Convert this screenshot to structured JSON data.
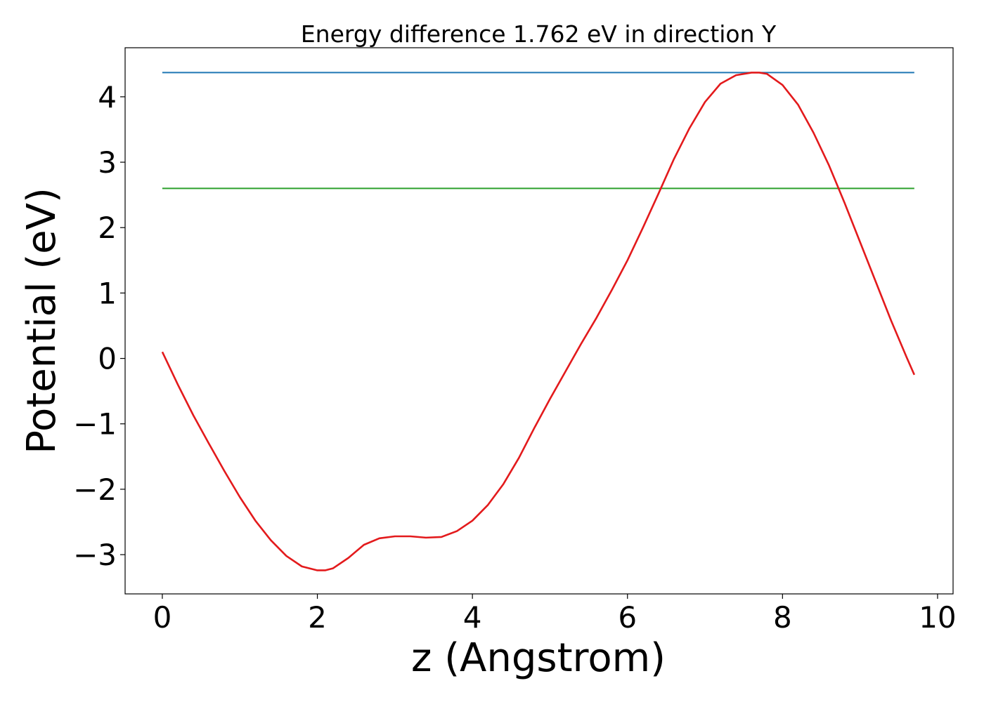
{
  "chart_data": {
    "type": "line",
    "title": "Energy difference 1.762 eV in direction Y",
    "xlabel": "z (Angstrom)",
    "ylabel": "Potential (eV)",
    "xlim": [
      -0.48,
      10.2
    ],
    "ylim": [
      -3.6,
      4.75
    ],
    "xticks": [
      0,
      2,
      4,
      6,
      8,
      10
    ],
    "xtick_labels": [
      "0",
      "2",
      "4",
      "6",
      "8",
      "10"
    ],
    "yticks": [
      -3,
      -2,
      -1,
      0,
      1,
      2,
      3,
      4
    ],
    "ytick_labels": [
      "−3",
      "−2",
      "−1",
      "0",
      "1",
      "2",
      "3",
      "4"
    ],
    "grid": false,
    "series": [
      {
        "color": "#1f77b4",
        "x": [
          0,
          9.7
        ],
        "y": [
          4.37,
          4.37
        ]
      },
      {
        "color": "#2ca02c",
        "x": [
          0,
          9.7
        ],
        "y": [
          2.6,
          2.6
        ]
      },
      {
        "color": "#e31a1c",
        "x": [
          0,
          0.2,
          0.4,
          0.6,
          0.8,
          1.0,
          1.2,
          1.4,
          1.6,
          1.8,
          2.0,
          2.1,
          2.2,
          2.4,
          2.6,
          2.8,
          3.0,
          3.2,
          3.4,
          3.6,
          3.8,
          4.0,
          4.2,
          4.4,
          4.6,
          4.8,
          5.0,
          5.2,
          5.4,
          5.6,
          5.8,
          6.0,
          6.2,
          6.4,
          6.6,
          6.8,
          7.0,
          7.2,
          7.4,
          7.6,
          7.7,
          7.8,
          8.0,
          8.2,
          8.4,
          8.6,
          8.8,
          9.0,
          9.2,
          9.4,
          9.6,
          9.7
        ],
        "y": [
          0.1,
          -0.4,
          -0.87,
          -1.3,
          -1.72,
          -2.12,
          -2.48,
          -2.78,
          -3.02,
          -3.18,
          -3.24,
          -3.24,
          -3.21,
          -3.05,
          -2.85,
          -2.75,
          -2.72,
          -2.72,
          -2.74,
          -2.73,
          -2.64,
          -2.48,
          -2.24,
          -1.92,
          -1.52,
          -1.06,
          -0.62,
          -0.2,
          0.22,
          0.62,
          1.05,
          1.5,
          2.0,
          2.52,
          3.05,
          3.52,
          3.92,
          4.2,
          4.33,
          4.37,
          4.37,
          4.35,
          4.18,
          3.88,
          3.45,
          2.95,
          2.38,
          1.78,
          1.18,
          0.58,
          0.02,
          -0.25
        ]
      }
    ]
  }
}
